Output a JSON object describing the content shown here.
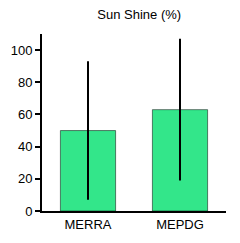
{
  "chart_data": {
    "type": "bar",
    "title": "Sun Shine (%)",
    "categories": [
      "MERRA",
      "MEPDG"
    ],
    "values": [
      50,
      63
    ],
    "errors": [
      43,
      44
    ],
    "color": "#33e68a",
    "ylim": [
      0,
      110
    ],
    "yticks": [
      0,
      20,
      40,
      60,
      80,
      100
    ],
    "grid": false
  }
}
